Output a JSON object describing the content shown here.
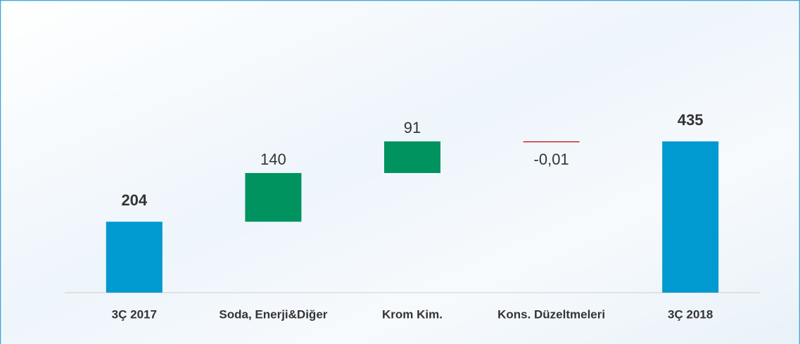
{
  "chart_data": {
    "type": "waterfall",
    "categories": [
      "3Ç 2017",
      "Soda, Enerji&Diğer",
      "Krom Kim.",
      "Kons. Düzeltmeleri",
      "3Ç 2018"
    ],
    "values": [
      204,
      140,
      91,
      -0.01,
      435
    ],
    "value_labels": [
      "204",
      "140",
      "91",
      "-0,01",
      "435"
    ],
    "total_color": "#0099d0",
    "increase_color": "#00935f",
    "decrease_color": "#c00000"
  }
}
